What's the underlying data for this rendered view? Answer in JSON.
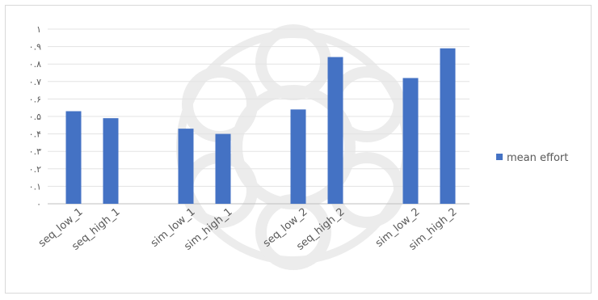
{
  "chart_data": {
    "type": "bar",
    "categories": [
      "seq_low_1",
      "seq_high_1",
      "sim_low_1",
      "sim_high_1",
      "seq_low_2",
      "seq_high_2",
      "sim_low_2",
      "sim_high_2"
    ],
    "series": [
      {
        "name": "mean effort",
        "values": [
          0.53,
          0.49,
          0.43,
          0.4,
          0.54,
          0.84,
          0.72,
          0.89
        ],
        "color": "#4472c4"
      }
    ],
    "group_gaps_after_index": [
      1,
      3,
      5
    ],
    "ylim": [
      0,
      1
    ],
    "yticks": [
      {
        "value": 0,
        "label": "٠"
      },
      {
        "value": 0.1,
        "label": "٠.١"
      },
      {
        "value": 0.2,
        "label": "٠.٢"
      },
      {
        "value": 0.3,
        "label": "٠.٣"
      },
      {
        "value": 0.4,
        "label": "٠.۴"
      },
      {
        "value": 0.5,
        "label": "٠.۵"
      },
      {
        "value": 0.6,
        "label": "٠.۶"
      },
      {
        "value": 0.7,
        "label": "٠.٧"
      },
      {
        "value": 0.8,
        "label": "٠.٨"
      },
      {
        "value": 0.9,
        "label": "٠.٩"
      },
      {
        "value": 1.0,
        "label": "١"
      }
    ],
    "grid": true,
    "legend": {
      "position": "right",
      "label": "mean effort"
    },
    "title": "",
    "xlabel": "",
    "ylabel": ""
  }
}
